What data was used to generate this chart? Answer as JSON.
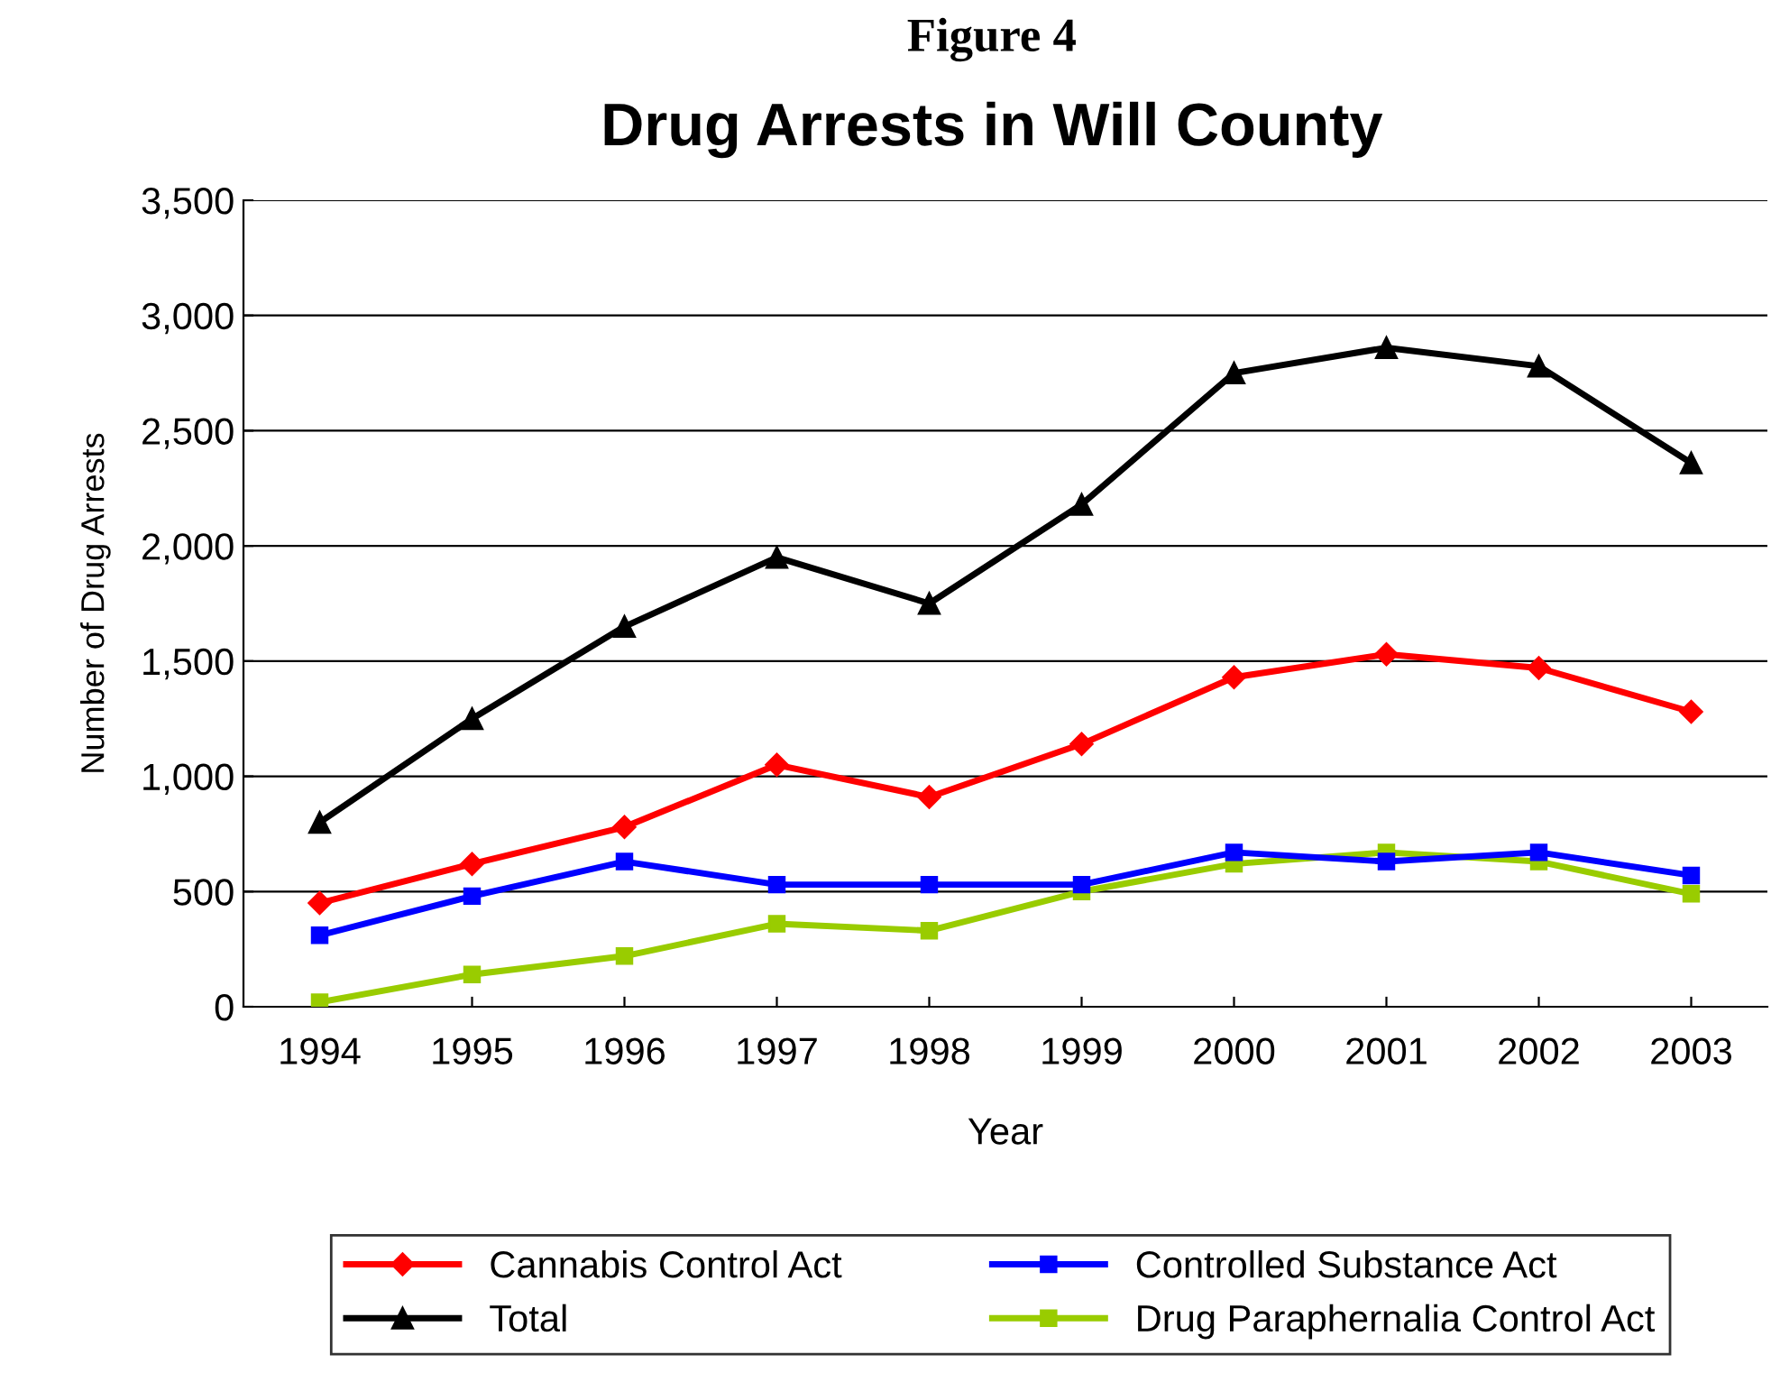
{
  "chart_data": {
    "type": "line",
    "title": "Figure 4",
    "subtitle": "Drug Arrests in Will County",
    "xlabel": "Year",
    "ylabel": "Number of Drug Arrests",
    "categories": [
      "1994",
      "1995",
      "1996",
      "1997",
      "1998",
      "1999",
      "2000",
      "2001",
      "2002",
      "2003"
    ],
    "series": [
      {
        "name": "Cannabis Control Act",
        "color": "#ff0000",
        "marker": "diamond",
        "values": [
          450,
          620,
          780,
          1050,
          910,
          1140,
          1430,
          1530,
          1470,
          1280
        ]
      },
      {
        "name": "Total",
        "color": "#000000",
        "marker": "triangle",
        "values": [
          800,
          1250,
          1650,
          1950,
          1750,
          2180,
          2750,
          2860,
          2780,
          2360
        ]
      },
      {
        "name": "Controlled Substance Act",
        "color": "#0000ff",
        "marker": "square",
        "values": [
          310,
          480,
          630,
          530,
          530,
          530,
          670,
          630,
          670,
          570
        ]
      },
      {
        "name": "Drug Paraphernalia Control Act",
        "color": "#99cc00",
        "marker": "square",
        "values": [
          20,
          140,
          220,
          360,
          330,
          500,
          620,
          670,
          630,
          490
        ]
      }
    ],
    "ylim": [
      0,
      3500
    ],
    "yticks": [
      {
        "value": 0,
        "label": "0"
      },
      {
        "value": 500,
        "label": "500"
      },
      {
        "value": 1000,
        "label": "1,000"
      },
      {
        "value": 1500,
        "label": "1,500"
      },
      {
        "value": 2000,
        "label": "2,000"
      },
      {
        "value": 2500,
        "label": "2,500"
      },
      {
        "value": 3000,
        "label": "3,000"
      },
      {
        "value": 3500,
        "label": "3,500"
      }
    ],
    "grid": "y",
    "legend": "bottom",
    "line_style": "solid"
  }
}
